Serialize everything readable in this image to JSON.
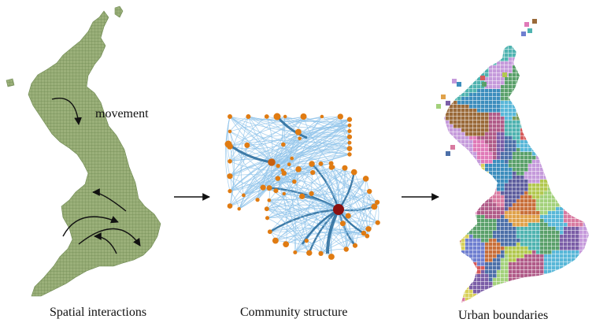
{
  "panels": [
    {
      "id": "spatial",
      "caption": "Spatial interactions",
      "annotation": "movement"
    },
    {
      "id": "community",
      "caption": "Community structure"
    },
    {
      "id": "urban",
      "caption": "Urban boundaries"
    }
  ],
  "colors": {
    "map_fill": "#9bb07a",
    "map_grid": "#6f8a52",
    "network_edge": "#8fc3ea",
    "network_edge_strong": "#2e6f9e",
    "node": "#e07b12",
    "hub_node": "#8b1010",
    "arrow": "#111111",
    "region_palette": [
      "#e07ab8",
      "#4fb3b0",
      "#9a6a3a",
      "#6f7fd0",
      "#b2c84f",
      "#d65b5b",
      "#5aa06a",
      "#c59adb",
      "#3c8dbd",
      "#e0a24a",
      "#7b5ea7",
      "#a3d17b",
      "#d97aa0",
      "#4c6fa8",
      "#c7b97a",
      "#58b7d8",
      "#b05b88",
      "#8fcf9d",
      "#d8d05a",
      "#7a9b5c",
      "#c86f3a",
      "#5e5e9e"
    ]
  }
}
